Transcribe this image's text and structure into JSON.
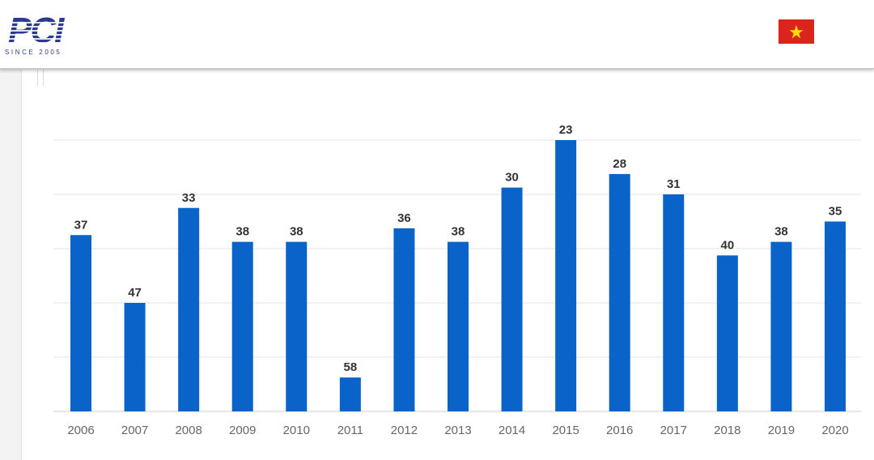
{
  "header": {
    "logo_text": "PCI",
    "logo_tagline": "SINCE 2005",
    "flag_colors": {
      "field": "#da251d",
      "star": "#ffde00"
    }
  },
  "chart_data": {
    "type": "bar",
    "title": "",
    "xlabel": "",
    "ylabel": "",
    "categories": [
      "2006",
      "2007",
      "2008",
      "2009",
      "2010",
      "2011",
      "2012",
      "2013",
      "2014",
      "2015",
      "2016",
      "2017",
      "2018",
      "2019",
      "2020"
    ],
    "values": [
      37,
      47,
      33,
      38,
      38,
      58,
      36,
      38,
      30,
      23,
      28,
      31,
      40,
      38,
      35
    ],
    "data_labels": [
      "37",
      "47",
      "33",
      "38",
      "38",
      "58",
      "36",
      "38",
      "30",
      "23",
      "28",
      "31",
      "40",
      "38",
      "35"
    ],
    "y_axis_inverted": true,
    "ylim": [
      63,
      23
    ],
    "gridlines": 5,
    "grid": true,
    "legend": "none",
    "bar_color": "#0a63c9",
    "grid_color": "#e3e3e3",
    "label_color": "#333333",
    "tick_color": "#666666"
  }
}
